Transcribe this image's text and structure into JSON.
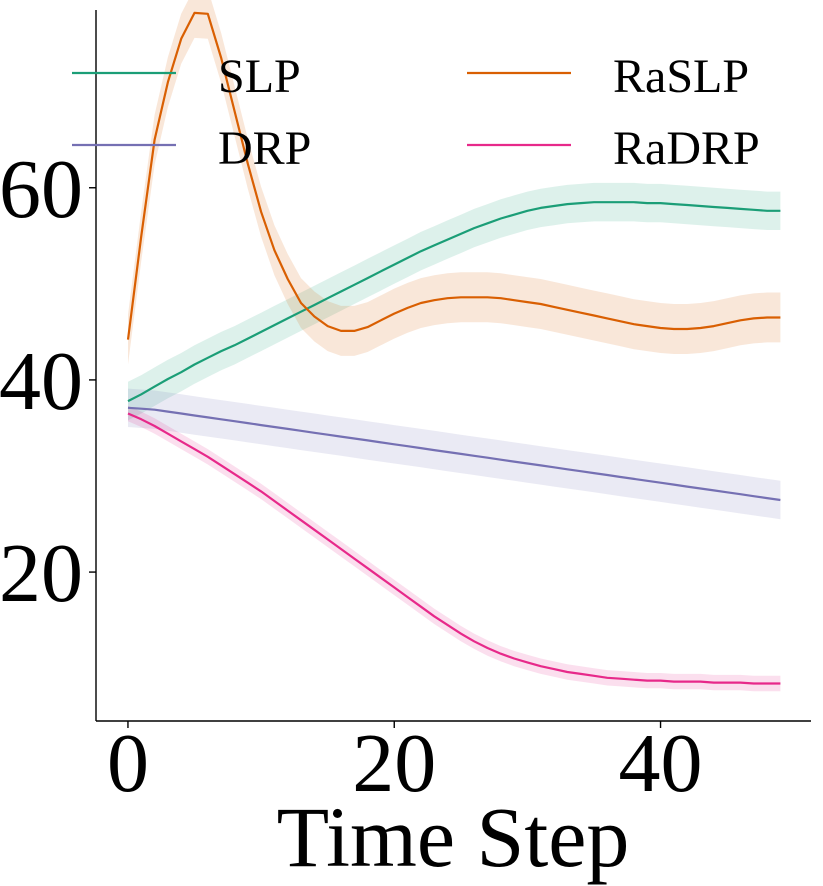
{
  "chart_data": {
    "type": "line",
    "title": "",
    "xlabel": "Time Step",
    "ylabel": "",
    "xlim": [
      -2.4,
      51.3
    ],
    "ylim": [
      4.5,
      78.5
    ],
    "xticks": [
      0,
      20,
      40
    ],
    "yticks": [
      20,
      40,
      60
    ],
    "xtick_labels": [
      "0",
      "20",
      "40"
    ],
    "ytick_labels": [
      "20",
      "40",
      "60"
    ],
    "grid": false,
    "legend": {
      "position": "top",
      "columns": 2
    },
    "x": [
      0,
      1,
      2,
      3,
      4,
      5,
      6,
      7,
      8,
      9,
      10,
      11,
      12,
      13,
      14,
      15,
      16,
      17,
      18,
      19,
      20,
      21,
      22,
      23,
      24,
      25,
      26,
      27,
      28,
      29,
      30,
      31,
      32,
      33,
      34,
      35,
      36,
      37,
      38,
      39,
      40,
      41,
      42,
      43,
      44,
      45,
      46,
      47,
      48,
      49
    ],
    "series": [
      {
        "name": "SLP",
        "color": "#1b9e77",
        "values": [
          37.8,
          38.5,
          39.3,
          40.1,
          40.8,
          41.6,
          42.3,
          43.0,
          43.6,
          44.3,
          45.0,
          45.7,
          46.4,
          47.1,
          47.8,
          48.5,
          49.2,
          49.9,
          50.6,
          51.3,
          52.0,
          52.7,
          53.4,
          54.0,
          54.6,
          55.2,
          55.8,
          56.3,
          56.8,
          57.2,
          57.6,
          57.9,
          58.1,
          58.3,
          58.4,
          58.5,
          58.5,
          58.5,
          58.5,
          58.4,
          58.4,
          58.3,
          58.2,
          58.1,
          58.0,
          57.9,
          57.8,
          57.7,
          57.6,
          57.6
        ],
        "band": 2.0
      },
      {
        "name": "RaSLP",
        "color": "#d95f02",
        "values": [
          44.2,
          55.0,
          65.0,
          71.0,
          75.5,
          78.2,
          78.1,
          73.5,
          68.0,
          62.5,
          57.5,
          53.5,
          50.5,
          48.0,
          46.6,
          45.6,
          45.1,
          45.1,
          45.5,
          46.2,
          46.9,
          47.5,
          48.0,
          48.3,
          48.5,
          48.6,
          48.6,
          48.6,
          48.5,
          48.3,
          48.1,
          47.9,
          47.6,
          47.3,
          47.0,
          46.7,
          46.4,
          46.1,
          45.8,
          45.6,
          45.4,
          45.3,
          45.3,
          45.4,
          45.6,
          45.9,
          46.2,
          46.4,
          46.5,
          46.5
        ],
        "band": 2.6
      },
      {
        "name": "DRP",
        "color": "#7570b3",
        "values": [
          37.1,
          37.0,
          36.9,
          36.7,
          36.5,
          36.3,
          36.1,
          35.9,
          35.7,
          35.5,
          35.3,
          35.1,
          34.9,
          34.7,
          34.5,
          34.3,
          34.1,
          33.9,
          33.7,
          33.5,
          33.3,
          33.1,
          32.9,
          32.7,
          32.5,
          32.3,
          32.1,
          31.9,
          31.7,
          31.5,
          31.3,
          31.1,
          30.9,
          30.7,
          30.5,
          30.3,
          30.1,
          29.9,
          29.7,
          29.5,
          29.3,
          29.1,
          28.9,
          28.7,
          28.5,
          28.3,
          28.1,
          27.9,
          27.7,
          27.5
        ],
        "band": 2.0
      },
      {
        "name": "RaDRP",
        "color": "#e7298a",
        "values": [
          36.5,
          35.9,
          35.2,
          34.4,
          33.6,
          32.8,
          32.0,
          31.1,
          30.2,
          29.3,
          28.4,
          27.4,
          26.4,
          25.4,
          24.4,
          23.4,
          22.4,
          21.4,
          20.4,
          19.4,
          18.4,
          17.4,
          16.4,
          15.4,
          14.5,
          13.6,
          12.8,
          12.1,
          11.5,
          11.0,
          10.6,
          10.2,
          9.9,
          9.6,
          9.4,
          9.2,
          9.0,
          8.9,
          8.8,
          8.7,
          8.7,
          8.6,
          8.6,
          8.6,
          8.5,
          8.5,
          8.5,
          8.4,
          8.4,
          8.4
        ],
        "band": 0.8
      }
    ]
  }
}
